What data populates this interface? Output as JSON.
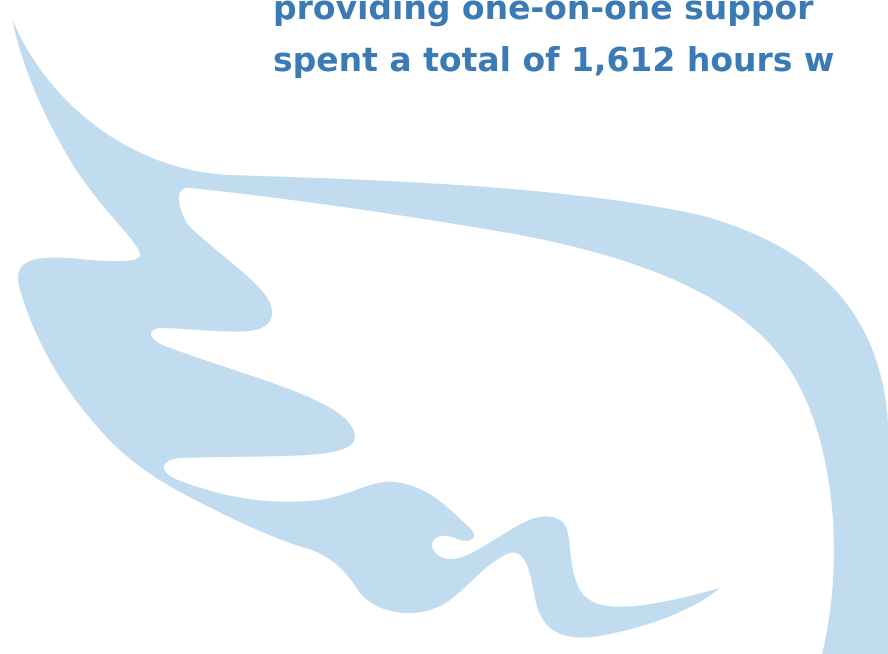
{
  "colors": {
    "wing": "#c1dcee",
    "text": "#3a7ab5",
    "background": "#ffffff"
  },
  "decoration": {
    "icon": "wing-icon"
  },
  "text": {
    "line1": "providing one-on-one suppor",
    "line2": "spent a total of 1,612 hours w"
  }
}
